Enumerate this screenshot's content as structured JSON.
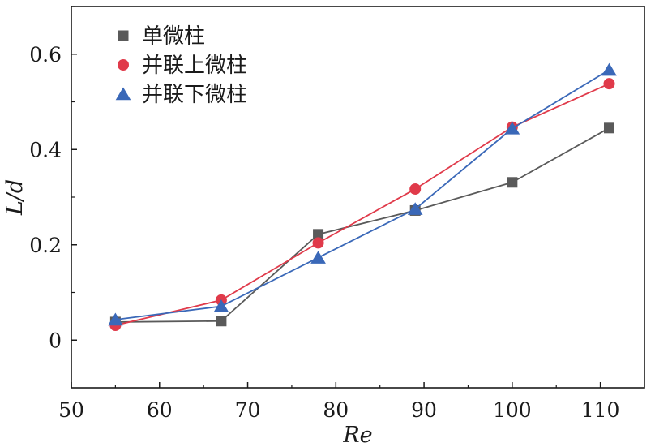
{
  "chart_data": {
    "type": "line",
    "xlabel": "Re",
    "ylabel": "L/d",
    "xlim": [
      50,
      115
    ],
    "ylim": [
      -0.1,
      0.7
    ],
    "xticks": [
      50,
      60,
      70,
      80,
      90,
      100,
      110
    ],
    "yticks": [
      0,
      0.2,
      0.4,
      0.6
    ],
    "ytick_labels": [
      "0",
      "0.2",
      "0.4",
      "0.6"
    ],
    "grid": false,
    "legend_position": "top-left",
    "series": [
      {
        "name": "单微柱",
        "marker": "square",
        "color": "#5a5a5a",
        "x": [
          55,
          67,
          78,
          89,
          100,
          111
        ],
        "y": [
          0.038,
          0.04,
          0.222,
          0.272,
          0.331,
          0.445
        ]
      },
      {
        "name": "并联上微柱",
        "marker": "circle",
        "color": "#e03a4a",
        "x": [
          55,
          67,
          78,
          89,
          100,
          111
        ],
        "y": [
          0.031,
          0.084,
          0.204,
          0.317,
          0.447,
          0.538
        ]
      },
      {
        "name": "并联下微柱",
        "marker": "triangle",
        "color": "#3a68b8",
        "x": [
          55,
          67,
          78,
          89,
          100,
          111
        ],
        "y": [
          0.043,
          0.071,
          0.173,
          0.275,
          0.444,
          0.567
        ]
      }
    ]
  }
}
